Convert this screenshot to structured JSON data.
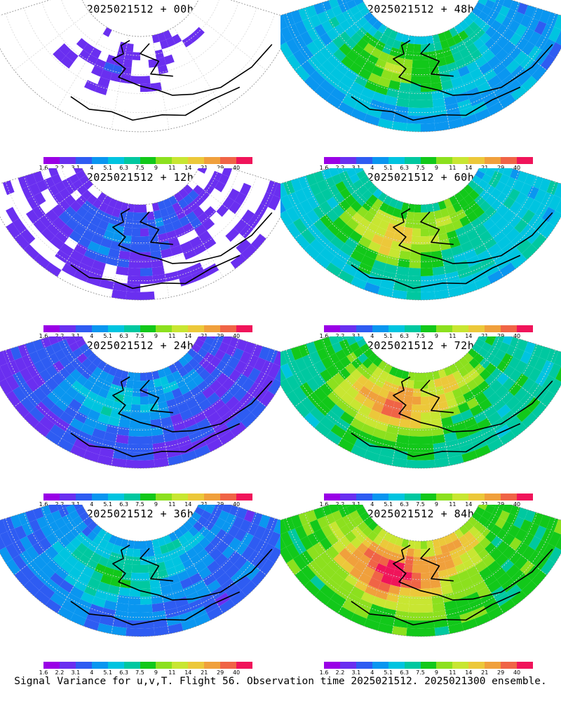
{
  "caption": "Signal Variance for u,v,T. Flight 56. Observation time 2025021512. 2025021300 ensemble.",
  "colorbar": {
    "labels": [
      "1.6",
      "2.2",
      "3.1",
      "4",
      "5.1",
      "6.3",
      "7.5",
      "9",
      "11",
      "14",
      "21",
      "29",
      "40"
    ],
    "colors": [
      "#9a00e6",
      "#6a2ff0",
      "#2e5cf2",
      "#0a96f0",
      "#00c4e0",
      "#00c8a0",
      "#12c81a",
      "#8ce01e",
      "#c8e632",
      "#ecc83a",
      "#f0a03c",
      "#f06446",
      "#f0145a"
    ]
  },
  "panels": [
    {
      "title": "2025021512 + 00h",
      "lead": 0
    },
    {
      "title": "2025021512 + 48h",
      "lead": 48
    },
    {
      "title": "2025021512 + 12h",
      "lead": 12
    },
    {
      "title": "2025021512 + 60h",
      "lead": 60
    },
    {
      "title": "2025021512 + 24h",
      "lead": 24
    },
    {
      "title": "2025021512 + 72h",
      "lead": 72
    },
    {
      "title": "2025021512 + 36h",
      "lead": 36
    },
    {
      "title": "2025021512 + 84h",
      "lead": 84
    }
  ]
}
